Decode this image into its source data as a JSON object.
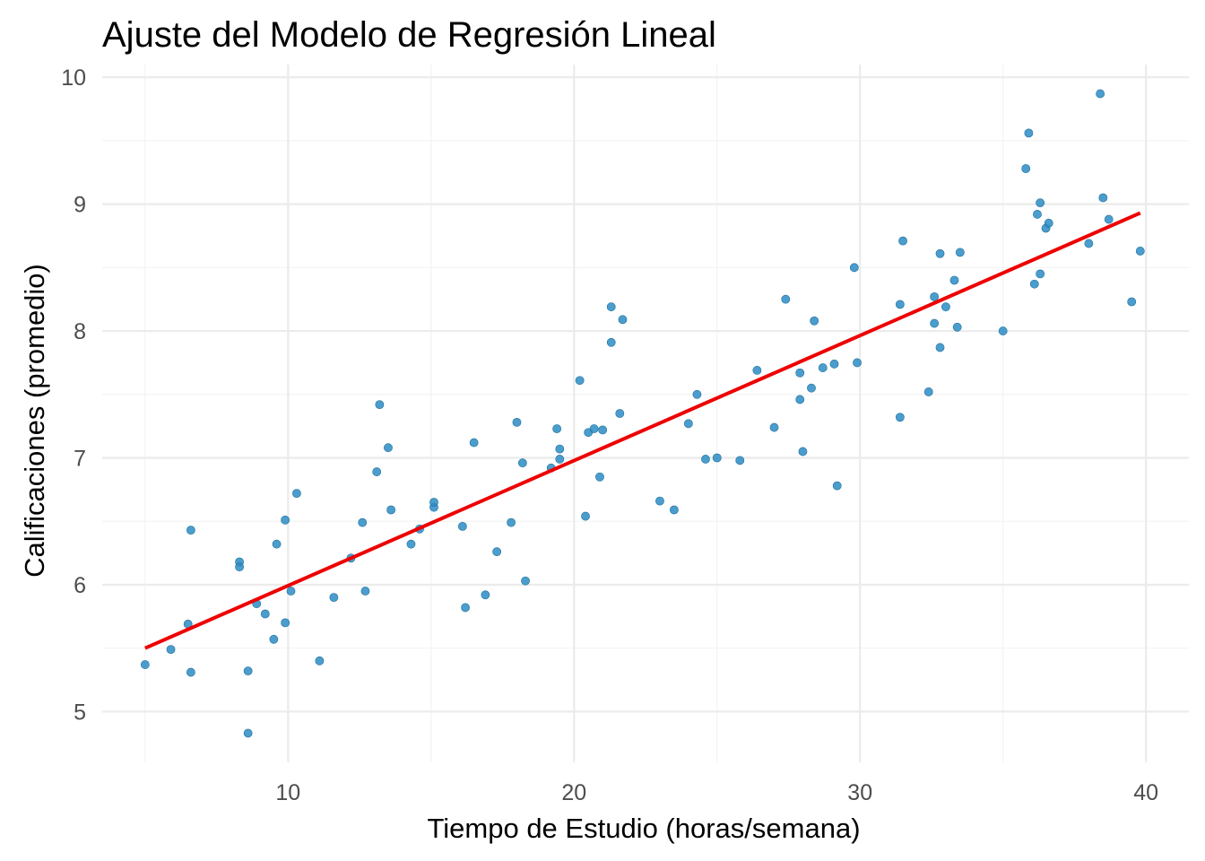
{
  "chart_data": {
    "type": "scatter",
    "title": "Ajuste del Modelo de Regresión Lineal",
    "xlabel": "Tiempo de Estudio (horas/semana)",
    "ylabel": "Calificaciones (promedio)",
    "xlim": [
      3.5,
      41.5
    ],
    "ylim": [
      4.6,
      10.1
    ],
    "x_ticks": [
      10,
      20,
      30,
      40
    ],
    "y_ticks": [
      5,
      6,
      7,
      8,
      9,
      10
    ],
    "x_minor_ticks": [
      5,
      15,
      25,
      35
    ],
    "y_minor_ticks": [
      5.5,
      6.5,
      7.5,
      8.5,
      9.5
    ],
    "grid": true,
    "colors": {
      "points": "#2b8cc4",
      "fit_line": "#ee0000",
      "grid": "#ebebeb"
    },
    "points": {
      "x": [
        5.0,
        5.9,
        6.5,
        6.6,
        6.6,
        8.3,
        8.3,
        8.6,
        8.6,
        8.9,
        9.2,
        9.5,
        9.6,
        9.9,
        9.9,
        10.1,
        10.3,
        11.1,
        11.6,
        12.2,
        12.6,
        12.7,
        13.1,
        13.2,
        13.5,
        13.6,
        14.3,
        14.6,
        15.1,
        15.1,
        16.1,
        16.2,
        16.5,
        16.9,
        17.3,
        17.8,
        18.0,
        18.2,
        18.3,
        19.2,
        19.4,
        19.5,
        19.5,
        20.2,
        20.4,
        20.5,
        20.7,
        20.9,
        21.0,
        21.3,
        21.3,
        21.6,
        21.7,
        23.0,
        23.5,
        24.0,
        24.3,
        24.6,
        25.0,
        25.8,
        26.4,
        27.0,
        27.4,
        27.9,
        27.9,
        28.0,
        28.3,
        28.4,
        28.7,
        29.1,
        29.2,
        29.8,
        29.9,
        31.4,
        31.4,
        31.5,
        32.4,
        32.6,
        32.6,
        32.8,
        32.8,
        33.0,
        33.3,
        33.4,
        33.5,
        35.0,
        35.8,
        35.9,
        36.1,
        36.2,
        36.3,
        36.3,
        36.5,
        36.6,
        38.0,
        38.4,
        38.5,
        38.7,
        39.5,
        39.8
      ],
      "y": [
        5.37,
        5.49,
        5.69,
        5.31,
        6.43,
        6.18,
        6.14,
        5.32,
        4.83,
        5.85,
        5.77,
        5.57,
        6.32,
        6.51,
        5.7,
        5.95,
        6.72,
        5.4,
        5.9,
        6.21,
        6.49,
        5.95,
        6.89,
        7.42,
        7.08,
        6.59,
        6.32,
        6.44,
        6.61,
        6.65,
        6.46,
        5.82,
        7.12,
        5.92,
        6.26,
        6.49,
        7.28,
        6.96,
        6.03,
        6.92,
        7.23,
        7.07,
        6.99,
        7.61,
        6.54,
        7.2,
        7.23,
        6.85,
        7.22,
        8.19,
        7.91,
        7.35,
        8.09,
        6.66,
        6.59,
        7.27,
        7.5,
        6.99,
        7.0,
        6.98,
        7.69,
        7.24,
        8.25,
        7.67,
        7.46,
        7.05,
        7.55,
        8.08,
        7.71,
        7.74,
        6.78,
        8.5,
        7.75,
        7.32,
        8.21,
        8.71,
        7.52,
        8.27,
        8.06,
        8.61,
        7.87,
        8.19,
        8.4,
        8.03,
        8.62,
        8.0,
        9.28,
        9.56,
        8.37,
        8.92,
        9.01,
        8.45,
        8.81,
        8.85,
        8.69,
        9.87,
        9.05,
        8.88,
        8.23,
        8.63
      ]
    },
    "fit_line": {
      "x": [
        5.0,
        39.8
      ],
      "y": [
        5.5,
        8.93
      ]
    }
  }
}
